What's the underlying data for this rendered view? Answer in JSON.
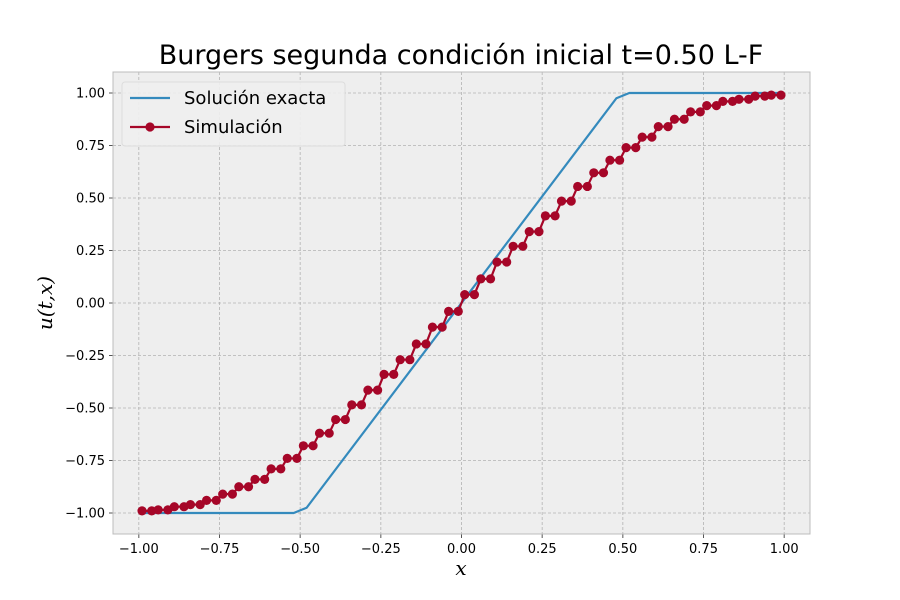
{
  "chart_data": {
    "type": "line",
    "title": "Burgers segunda condición inicial t=0.50 L-F",
    "xlabel": "x",
    "ylabel": "u(t,x)",
    "xlim": [
      -1.08,
      1.08
    ],
    "ylim": [
      -1.1,
      1.1
    ],
    "x_ticks": [
      -1.0,
      -0.75,
      -0.5,
      -0.25,
      0.0,
      0.25,
      0.5,
      0.75,
      1.0
    ],
    "x_tick_labels": [
      "−1.00",
      "−0.75",
      "−0.50",
      "−0.25",
      "0.00",
      "0.25",
      "0.50",
      "0.75",
      "1.00"
    ],
    "y_ticks": [
      -1.0,
      -0.75,
      -0.5,
      -0.25,
      0.0,
      0.25,
      0.5,
      0.75,
      1.0
    ],
    "y_tick_labels": [
      "−1.00",
      "−0.75",
      "−0.50",
      "−0.25",
      "0.00",
      "0.25",
      "0.50",
      "0.75",
      "1.00"
    ],
    "grid": true,
    "legend_position": "top-left",
    "series": [
      {
        "name": "Solución exacta",
        "color": "#348ABD",
        "marker": "none",
        "x": [
          -1.0,
          -0.52,
          -0.48,
          0.48,
          0.52,
          1.0
        ],
        "y": [
          -1.0,
          -1.0,
          -0.975,
          0.975,
          1.0,
          1.0
        ]
      },
      {
        "name": "Simulación",
        "color": "#A60628",
        "marker": "circle",
        "x": [
          -0.99,
          -0.96,
          -0.94,
          -0.91,
          -0.89,
          -0.86,
          -0.84,
          -0.81,
          -0.79,
          -0.76,
          -0.74,
          -0.71,
          -0.69,
          -0.66,
          -0.64,
          -0.61,
          -0.59,
          -0.56,
          -0.54,
          -0.51,
          -0.49,
          -0.46,
          -0.44,
          -0.41,
          -0.39,
          -0.36,
          -0.34,
          -0.31,
          -0.29,
          -0.26,
          -0.24,
          -0.21,
          -0.19,
          -0.16,
          -0.14,
          -0.11,
          -0.09,
          -0.06,
          -0.04,
          -0.01,
          0.01,
          0.04,
          0.06,
          0.09,
          0.11,
          0.14,
          0.16,
          0.19,
          0.21,
          0.24,
          0.26,
          0.29,
          0.31,
          0.34,
          0.36,
          0.39,
          0.41,
          0.44,
          0.46,
          0.49,
          0.51,
          0.54,
          0.56,
          0.59,
          0.61,
          0.64,
          0.66,
          0.69,
          0.71,
          0.74,
          0.76,
          0.79,
          0.81,
          0.84,
          0.86,
          0.89,
          0.91,
          0.94,
          0.96,
          0.99
        ],
        "y": [
          -0.99,
          -0.99,
          -0.985,
          -0.985,
          -0.97,
          -0.97,
          -0.96,
          -0.96,
          -0.94,
          -0.94,
          -0.91,
          -0.91,
          -0.875,
          -0.875,
          -0.84,
          -0.84,
          -0.79,
          -0.79,
          -0.74,
          -0.74,
          -0.68,
          -0.68,
          -0.62,
          -0.62,
          -0.555,
          -0.555,
          -0.485,
          -0.485,
          -0.415,
          -0.415,
          -0.34,
          -0.34,
          -0.27,
          -0.27,
          -0.195,
          -0.195,
          -0.115,
          -0.115,
          -0.04,
          -0.04,
          0.04,
          0.04,
          0.115,
          0.115,
          0.195,
          0.195,
          0.27,
          0.27,
          0.34,
          0.34,
          0.415,
          0.415,
          0.485,
          0.485,
          0.555,
          0.555,
          0.62,
          0.62,
          0.68,
          0.68,
          0.74,
          0.74,
          0.79,
          0.79,
          0.84,
          0.84,
          0.875,
          0.875,
          0.91,
          0.91,
          0.94,
          0.94,
          0.96,
          0.96,
          0.97,
          0.97,
          0.985,
          0.985,
          0.99,
          0.99
        ]
      }
    ]
  }
}
